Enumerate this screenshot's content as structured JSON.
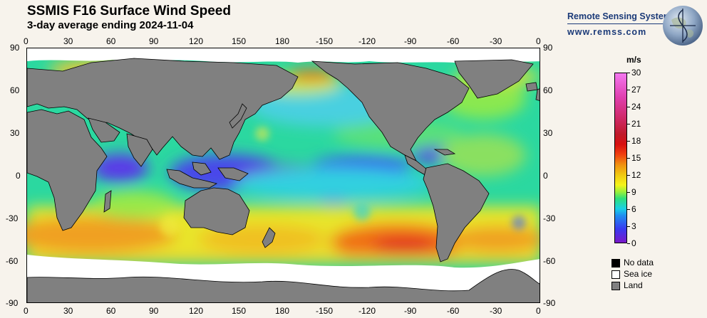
{
  "header": {
    "title": "SSMIS F16 Surface Wind Speed",
    "subtitle": "3-day average ending 2024-11-04"
  },
  "brand": {
    "name": "Remote Sensing Systems",
    "url": "www.remss.com"
  },
  "axes": {
    "lon_labels": [
      "0",
      "30",
      "60",
      "90",
      "120",
      "150",
      "180",
      "-150",
      "-120",
      "-90",
      "-60",
      "-30",
      "0"
    ],
    "lat_labels": [
      "90",
      "60",
      "30",
      "0",
      "-30",
      "-60",
      "-90"
    ]
  },
  "colorbar": {
    "unit": "m/s",
    "ticks": [
      "30",
      "27",
      "24",
      "21",
      "18",
      "15",
      "12",
      "9",
      "6",
      "3",
      "0"
    ],
    "min": 0,
    "max": 30
  },
  "legend": [
    {
      "label": "No data",
      "color": "#000000"
    },
    {
      "label": "Sea ice",
      "color": "#ffffff"
    },
    {
      "label": "Land",
      "color": "#808080"
    }
  ],
  "colors": {
    "land": "#808080",
    "ice": "#ffffff",
    "background": "#f7f3ec"
  }
}
